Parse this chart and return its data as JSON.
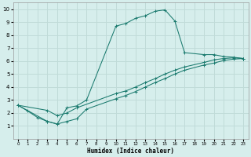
{
  "xlabel": "Humidex (Indice chaleur)",
  "xlim": [
    -0.5,
    23.5
  ],
  "ylim": [
    0,
    10.5
  ],
  "xticks": [
    0,
    1,
    2,
    3,
    4,
    5,
    6,
    7,
    8,
    9,
    10,
    11,
    12,
    13,
    14,
    15,
    16,
    17,
    18,
    19,
    20,
    21,
    22,
    23
  ],
  "yticks": [
    1,
    2,
    3,
    4,
    5,
    6,
    7,
    8,
    9,
    10
  ],
  "bg_color": "#d6eeec",
  "grid_color": "#c0dbd8",
  "line_color": "#1a7a6e",
  "line1_x": [
    0,
    1,
    2,
    3,
    4,
    5,
    6,
    7,
    10,
    11,
    12,
    13,
    14,
    15,
    16,
    17,
    19,
    20,
    21,
    22,
    23
  ],
  "line1_y": [
    2.6,
    2.15,
    1.65,
    1.35,
    1.15,
    2.4,
    2.55,
    3.0,
    8.7,
    8.9,
    9.3,
    9.5,
    9.85,
    9.95,
    9.1,
    6.65,
    6.5,
    6.5,
    6.35,
    6.3,
    6.2
  ],
  "line2_x": [
    0,
    3,
    4,
    5,
    6,
    10,
    11,
    12,
    13,
    14,
    15,
    16,
    17,
    19,
    20,
    21,
    22,
    23
  ],
  "line2_y": [
    2.6,
    2.2,
    1.8,
    2.0,
    2.4,
    3.5,
    3.7,
    4.0,
    4.35,
    4.65,
    5.0,
    5.3,
    5.55,
    5.9,
    6.1,
    6.2,
    6.25,
    6.2
  ],
  "line3_x": [
    0,
    3,
    4,
    5,
    6,
    7,
    10,
    11,
    12,
    13,
    14,
    15,
    16,
    17,
    19,
    20,
    21,
    22,
    23
  ],
  "line3_y": [
    2.6,
    1.35,
    1.15,
    1.35,
    1.55,
    2.3,
    3.1,
    3.35,
    3.65,
    4.0,
    4.35,
    4.65,
    5.0,
    5.3,
    5.7,
    5.85,
    6.05,
    6.15,
    6.2
  ]
}
